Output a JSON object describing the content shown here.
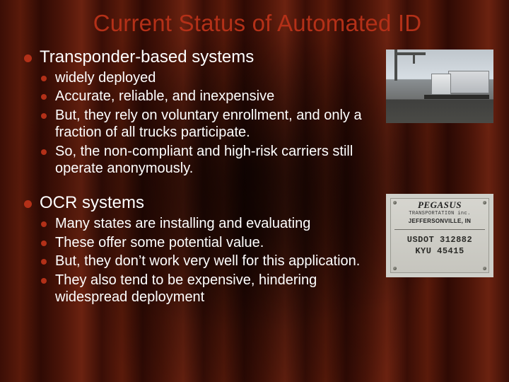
{
  "colors": {
    "title": "#b33018",
    "body_text": "#ffffff",
    "bullet": "#b33018",
    "background_base": "#3a0e06"
  },
  "typography": {
    "title_fontsize_pt": 25,
    "level1_fontsize_pt": 18,
    "level2_fontsize_pt": 15,
    "font_family": "Tahoma, Verdana, Arial, sans-serif"
  },
  "title": "Current Status of Automated ID",
  "sections": [
    {
      "heading": "Transponder-based systems",
      "image": {
        "kind": "truck-gantry-photo",
        "alt": "Semi truck passing under overhead transponder reader"
      },
      "items": [
        "widely deployed",
        "Accurate, reliable, and inexpensive",
        "But, they rely on voluntary enrollment, and only a fraction of all trucks participate.",
        "So, the non-compliant and high-risk carriers still operate anonymously."
      ]
    },
    {
      "heading": "OCR systems",
      "image": {
        "kind": "usdot-panel-photo",
        "alt": "Truck door panel with company name and USDOT / KYU numbers",
        "panel": {
          "company": "PEGASUS",
          "subline": "TRANSPORTATION  inc.",
          "city": "JEFFERSONVILLE, IN",
          "usdot": "USDOT 312882",
          "kyu": "KYU 45415"
        }
      },
      "items": [
        "Many states are installing and evaluating",
        "These offer some potential value.",
        "But, they don’t work very well for this application.",
        "They also tend to be expensive, hindering widespread deployment"
      ]
    }
  ]
}
